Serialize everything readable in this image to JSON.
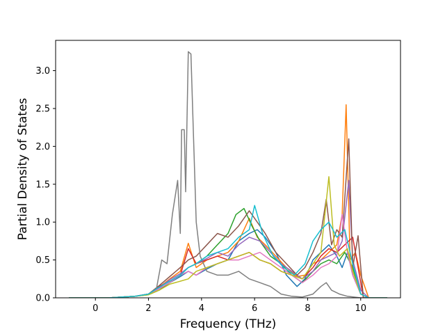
{
  "chart_data": {
    "type": "line",
    "xlabel": "Frequency (THz)",
    "ylabel": "Partial Density of States",
    "xlim": [
      -1.5,
      11.5
    ],
    "ylim": [
      0,
      3.4
    ],
    "xticks": [
      0,
      2,
      4,
      6,
      8,
      10
    ],
    "xtick_labels": [
      "0",
      "2",
      "4",
      "6",
      "8",
      "10"
    ],
    "yticks": [
      0,
      0.5,
      1.0,
      1.5,
      2.0,
      2.5,
      3.0
    ],
    "ytick_labels": [
      "0.0",
      "0.5",
      "1.0",
      "1.5",
      "2.0",
      "2.5",
      "3.0"
    ],
    "grid": false,
    "legend": "none",
    "series": [
      {
        "color": "#1f77b4",
        "points": [
          [
            -1,
            0
          ],
          [
            0.5,
            0
          ],
          [
            1.5,
            0.02
          ],
          [
            2,
            0.05
          ],
          [
            2.4,
            0.12
          ],
          [
            2.8,
            0.2
          ],
          [
            3.2,
            0.28
          ],
          [
            3.5,
            0.35
          ],
          [
            3.8,
            0.3
          ],
          [
            4.2,
            0.38
          ],
          [
            4.6,
            0.45
          ],
          [
            5,
            0.5
          ],
          [
            5.4,
            0.75
          ],
          [
            5.8,
            0.85
          ],
          [
            6.1,
            0.9
          ],
          [
            6.4,
            0.8
          ],
          [
            6.8,
            0.6
          ],
          [
            7.2,
            0.3
          ],
          [
            7.6,
            0.15
          ],
          [
            7.9,
            0.25
          ],
          [
            8.2,
            0.5
          ],
          [
            8.5,
            0.6
          ],
          [
            8.8,
            0.7
          ],
          [
            9.1,
            0.55
          ],
          [
            9.3,
            0.4
          ],
          [
            9.5,
            0.6
          ],
          [
            9.7,
            0.3
          ],
          [
            10,
            0.05
          ],
          [
            10.3,
            0
          ],
          [
            11,
            0
          ]
        ]
      },
      {
        "color": "#ff7f0e",
        "points": [
          [
            -1,
            0
          ],
          [
            0.5,
            0
          ],
          [
            1.5,
            0.02
          ],
          [
            2,
            0.05
          ],
          [
            2.4,
            0.14
          ],
          [
            2.8,
            0.25
          ],
          [
            3.2,
            0.35
          ],
          [
            3.5,
            0.72
          ],
          [
            3.8,
            0.4
          ],
          [
            4.2,
            0.5
          ],
          [
            4.6,
            0.55
          ],
          [
            5,
            0.6
          ],
          [
            5.4,
            0.75
          ],
          [
            5.8,
            1.05
          ],
          [
            6.1,
            0.8
          ],
          [
            6.4,
            0.7
          ],
          [
            6.8,
            0.55
          ],
          [
            7.2,
            0.4
          ],
          [
            7.6,
            0.28
          ],
          [
            7.9,
            0.3
          ],
          [
            8.2,
            0.45
          ],
          [
            8.5,
            0.5
          ],
          [
            8.8,
            0.6
          ],
          [
            9.1,
            0.7
          ],
          [
            9.3,
            1.1
          ],
          [
            9.45,
            2.55
          ],
          [
            9.6,
            0.5
          ],
          [
            9.8,
            0.6
          ],
          [
            10,
            0.3
          ],
          [
            10.3,
            0
          ],
          [
            11,
            0
          ]
        ]
      },
      {
        "color": "#2ca02c",
        "points": [
          [
            -1,
            0
          ],
          [
            0.5,
            0
          ],
          [
            1.5,
            0.02
          ],
          [
            2,
            0.04
          ],
          [
            2.4,
            0.1
          ],
          [
            2.8,
            0.2
          ],
          [
            3.2,
            0.3
          ],
          [
            3.5,
            0.4
          ],
          [
            3.8,
            0.45
          ],
          [
            4.2,
            0.55
          ],
          [
            4.6,
            0.7
          ],
          [
            5,
            0.85
          ],
          [
            5.3,
            1.1
          ],
          [
            5.6,
            1.18
          ],
          [
            5.9,
            0.95
          ],
          [
            6.2,
            0.75
          ],
          [
            6.6,
            0.55
          ],
          [
            7,
            0.45
          ],
          [
            7.4,
            0.3
          ],
          [
            7.8,
            0.2
          ],
          [
            8.2,
            0.35
          ],
          [
            8.5,
            0.45
          ],
          [
            8.8,
            0.5
          ],
          [
            9.1,
            0.45
          ],
          [
            9.4,
            0.6
          ],
          [
            9.7,
            0.4
          ],
          [
            10,
            0.05
          ],
          [
            10.3,
            0
          ],
          [
            11,
            0
          ]
        ]
      },
      {
        "color": "#d62728",
        "points": [
          [
            -1,
            0
          ],
          [
            0.5,
            0
          ],
          [
            1.5,
            0.02
          ],
          [
            2,
            0.05
          ],
          [
            2.4,
            0.15
          ],
          [
            2.8,
            0.22
          ],
          [
            3.2,
            0.3
          ],
          [
            3.5,
            0.65
          ],
          [
            3.8,
            0.45
          ],
          [
            4.2,
            0.5
          ],
          [
            4.6,
            0.55
          ],
          [
            5,
            0.5
          ],
          [
            5.4,
            0.55
          ],
          [
            5.8,
            0.6
          ],
          [
            6.2,
            0.5
          ],
          [
            6.6,
            0.45
          ],
          [
            7,
            0.35
          ],
          [
            7.4,
            0.3
          ],
          [
            7.8,
            0.25
          ],
          [
            8.2,
            0.4
          ],
          [
            8.5,
            0.55
          ],
          [
            8.8,
            0.65
          ],
          [
            9.1,
            0.6
          ],
          [
            9.4,
            0.7
          ],
          [
            9.7,
            0.8
          ],
          [
            9.9,
            0.4
          ],
          [
            10.1,
            0
          ],
          [
            11,
            0
          ]
        ]
      },
      {
        "color": "#9467bd",
        "points": [
          [
            -1,
            0
          ],
          [
            0.5,
            0
          ],
          [
            1.5,
            0.02
          ],
          [
            2,
            0.05
          ],
          [
            2.4,
            0.13
          ],
          [
            2.8,
            0.24
          ],
          [
            3.2,
            0.32
          ],
          [
            3.5,
            0.4
          ],
          [
            3.8,
            0.45
          ],
          [
            4.2,
            0.52
          ],
          [
            4.6,
            0.6
          ],
          [
            5,
            0.55
          ],
          [
            5.4,
            0.7
          ],
          [
            5.8,
            0.8
          ],
          [
            6.2,
            0.75
          ],
          [
            6.6,
            0.6
          ],
          [
            7,
            0.45
          ],
          [
            7.4,
            0.35
          ],
          [
            7.8,
            0.25
          ],
          [
            8.2,
            0.35
          ],
          [
            8.5,
            0.5
          ],
          [
            8.8,
            0.55
          ],
          [
            9.1,
            0.6
          ],
          [
            9.3,
            0.75
          ],
          [
            9.55,
            1.55
          ],
          [
            9.7,
            0.5
          ],
          [
            10,
            0.1
          ],
          [
            10.3,
            0
          ],
          [
            11,
            0
          ]
        ]
      },
      {
        "color": "#8c564b",
        "points": [
          [
            -1,
            0
          ],
          [
            0.5,
            0
          ],
          [
            1.5,
            0.02
          ],
          [
            2,
            0.05
          ],
          [
            2.4,
            0.16
          ],
          [
            2.8,
            0.28
          ],
          [
            3.2,
            0.4
          ],
          [
            3.5,
            0.5
          ],
          [
            3.8,
            0.55
          ],
          [
            4.2,
            0.7
          ],
          [
            4.6,
            0.85
          ],
          [
            5,
            0.8
          ],
          [
            5.4,
            0.95
          ],
          [
            5.8,
            1.15
          ],
          [
            6.1,
            1.0
          ],
          [
            6.4,
            0.85
          ],
          [
            6.8,
            0.6
          ],
          [
            7.2,
            0.45
          ],
          [
            7.6,
            0.3
          ],
          [
            7.9,
            0.4
          ],
          [
            8.2,
            0.6
          ],
          [
            8.5,
            0.85
          ],
          [
            8.7,
            1.3
          ],
          [
            8.9,
            0.7
          ],
          [
            9.1,
            0.9
          ],
          [
            9.3,
            0.8
          ],
          [
            9.55,
            2.1
          ],
          [
            9.7,
            0.4
          ],
          [
            9.9,
            0.82
          ],
          [
            10.1,
            0
          ],
          [
            11,
            0
          ]
        ]
      },
      {
        "color": "#e377c2",
        "points": [
          [
            -1,
            0
          ],
          [
            0.5,
            0
          ],
          [
            1.5,
            0.02
          ],
          [
            2,
            0.05
          ],
          [
            2.4,
            0.12
          ],
          [
            2.8,
            0.2
          ],
          [
            3.2,
            0.3
          ],
          [
            3.5,
            0.35
          ],
          [
            3.8,
            0.3
          ],
          [
            4.2,
            0.4
          ],
          [
            4.6,
            0.45
          ],
          [
            5,
            0.5
          ],
          [
            5.4,
            0.5
          ],
          [
            5.8,
            0.55
          ],
          [
            6.2,
            0.6
          ],
          [
            6.6,
            0.5
          ],
          [
            7,
            0.4
          ],
          [
            7.4,
            0.3
          ],
          [
            7.8,
            0.2
          ],
          [
            8.2,
            0.3
          ],
          [
            8.5,
            0.4
          ],
          [
            8.8,
            0.45
          ],
          [
            9.1,
            0.55
          ],
          [
            9.3,
            1.1
          ],
          [
            9.5,
            0.6
          ],
          [
            9.7,
            0.3
          ],
          [
            10,
            0.05
          ],
          [
            10.3,
            0
          ],
          [
            11,
            0
          ]
        ]
      },
      {
        "color": "#7f7f7f",
        "points": [
          [
            -1,
            0
          ],
          [
            0.5,
            0
          ],
          [
            1.5,
            0.02
          ],
          [
            2,
            0.05
          ],
          [
            2.3,
            0.12
          ],
          [
            2.5,
            0.5
          ],
          [
            2.7,
            0.45
          ],
          [
            2.9,
            1.1
          ],
          [
            3.1,
            1.55
          ],
          [
            3.2,
            0.85
          ],
          [
            3.25,
            2.22
          ],
          [
            3.35,
            2.22
          ],
          [
            3.4,
            1.4
          ],
          [
            3.5,
            3.25
          ],
          [
            3.6,
            3.22
          ],
          [
            3.7,
            2.1
          ],
          [
            3.8,
            1.0
          ],
          [
            3.95,
            0.55
          ],
          [
            4.2,
            0.35
          ],
          [
            4.6,
            0.3
          ],
          [
            5,
            0.3
          ],
          [
            5.4,
            0.35
          ],
          [
            5.8,
            0.25
          ],
          [
            6.2,
            0.2
          ],
          [
            6.6,
            0.15
          ],
          [
            7,
            0.05
          ],
          [
            7.4,
            0.02
          ],
          [
            7.8,
            0.01
          ],
          [
            8.2,
            0.05
          ],
          [
            8.5,
            0.15
          ],
          [
            8.7,
            0.2
          ],
          [
            8.9,
            0.1
          ],
          [
            9.2,
            0.05
          ],
          [
            9.5,
            0.02
          ],
          [
            10,
            0
          ],
          [
            11,
            0
          ]
        ]
      },
      {
        "color": "#bcbd22",
        "points": [
          [
            -1,
            0
          ],
          [
            0.5,
            0
          ],
          [
            1.5,
            0.02
          ],
          [
            2,
            0.04
          ],
          [
            2.4,
            0.1
          ],
          [
            2.8,
            0.18
          ],
          [
            3.2,
            0.22
          ],
          [
            3.5,
            0.25
          ],
          [
            3.8,
            0.35
          ],
          [
            4.2,
            0.4
          ],
          [
            4.6,
            0.45
          ],
          [
            5,
            0.5
          ],
          [
            5.4,
            0.55
          ],
          [
            5.8,
            0.6
          ],
          [
            6.2,
            0.5
          ],
          [
            6.6,
            0.45
          ],
          [
            7,
            0.35
          ],
          [
            7.4,
            0.3
          ],
          [
            7.8,
            0.25
          ],
          [
            8.2,
            0.45
          ],
          [
            8.5,
            0.6
          ],
          [
            8.8,
            1.6
          ],
          [
            9.0,
            0.7
          ],
          [
            9.2,
            0.55
          ],
          [
            9.5,
            0.65
          ],
          [
            9.7,
            0.35
          ],
          [
            10,
            0.05
          ],
          [
            10.3,
            0
          ],
          [
            11,
            0
          ]
        ]
      },
      {
        "color": "#17becf",
        "points": [
          [
            -1,
            0
          ],
          [
            0.5,
            0
          ],
          [
            1.5,
            0.02
          ],
          [
            2,
            0.05
          ],
          [
            2.4,
            0.14
          ],
          [
            2.8,
            0.22
          ],
          [
            3.2,
            0.3
          ],
          [
            3.5,
            0.4
          ],
          [
            3.8,
            0.45
          ],
          [
            4.2,
            0.55
          ],
          [
            4.6,
            0.6
          ],
          [
            5,
            0.65
          ],
          [
            5.4,
            0.8
          ],
          [
            5.8,
            0.9
          ],
          [
            6.0,
            1.22
          ],
          [
            6.3,
            0.85
          ],
          [
            6.7,
            0.55
          ],
          [
            7.1,
            0.4
          ],
          [
            7.5,
            0.3
          ],
          [
            7.9,
            0.45
          ],
          [
            8.2,
            0.75
          ],
          [
            8.5,
            0.9
          ],
          [
            8.8,
            1.0
          ],
          [
            9.1,
            0.8
          ],
          [
            9.4,
            0.9
          ],
          [
            9.7,
            0.45
          ],
          [
            10,
            0.05
          ],
          [
            10.3,
            0
          ],
          [
            11,
            0
          ]
        ]
      }
    ]
  }
}
